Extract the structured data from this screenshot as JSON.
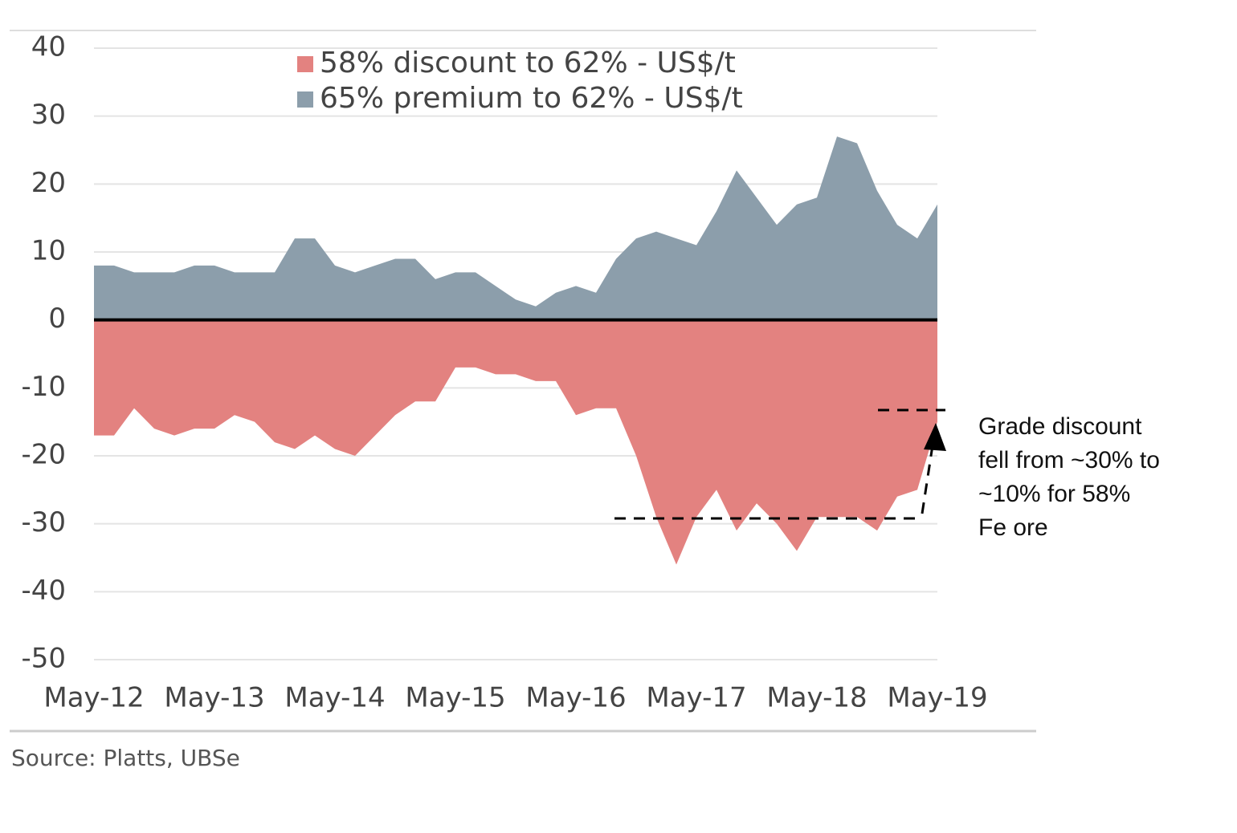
{
  "chart_data": {
    "type": "area",
    "source": "Source:  Platts, UBSe",
    "annotation": [
      "Grade discount",
      "fell from ~30% to",
      "~10% for 58%",
      "Fe ore"
    ],
    "x": [
      "2012-05",
      "2012-07",
      "2012-09",
      "2012-11",
      "2013-01",
      "2013-03",
      "2013-05",
      "2013-07",
      "2013-09",
      "2013-11",
      "2014-01",
      "2014-03",
      "2014-05",
      "2014-07",
      "2014-09",
      "2014-11",
      "2015-01",
      "2015-03",
      "2015-05",
      "2015-07",
      "2015-09",
      "2015-11",
      "2016-01",
      "2016-03",
      "2016-05",
      "2016-07",
      "2016-09",
      "2016-11",
      "2017-01",
      "2017-03",
      "2017-05",
      "2017-07",
      "2017-09",
      "2017-11",
      "2018-01",
      "2018-03",
      "2018-05",
      "2018-07",
      "2018-09",
      "2018-11",
      "2019-01",
      "2019-03",
      "2019-05"
    ],
    "series": [
      {
        "name": "58% discount to 62% - US$/t",
        "color": "#e38280",
        "values": [
          -17,
          -17,
          -13,
          -16,
          -17,
          -16,
          -16,
          -14,
          -15,
          -18,
          -19,
          -17,
          -19,
          -20,
          -17,
          -14,
          -12,
          -12,
          -7,
          -7,
          -8,
          -8,
          -9,
          -9,
          -14,
          -13,
          -13,
          -20,
          -29,
          -36,
          -29,
          -25,
          -31,
          -27,
          -30,
          -34,
          -29,
          -29,
          -29,
          -31,
          -26,
          -25,
          -15
        ]
      },
      {
        "name": "65% premium to 62% - US$/t",
        "color": "#8c9eab",
        "values": [
          8,
          8,
          7,
          7,
          7,
          8,
          8,
          7,
          7,
          7,
          12,
          12,
          8,
          7,
          8,
          9,
          9,
          6,
          7,
          7,
          5,
          3,
          2,
          4,
          5,
          4,
          9,
          12,
          13,
          12,
          11,
          16,
          22,
          18,
          14,
          17,
          18,
          27,
          26,
          19,
          14,
          12,
          17
        ]
      }
    ],
    "xticks": [
      {
        "value": "2012-05",
        "label": "May-12"
      },
      {
        "value": "2013-05",
        "label": "May-13"
      },
      {
        "value": "2014-05",
        "label": "May-14"
      },
      {
        "value": "2015-05",
        "label": "May-15"
      },
      {
        "value": "2016-05",
        "label": "May-16"
      },
      {
        "value": "2017-05",
        "label": "May-17"
      },
      {
        "value": "2018-05",
        "label": "May-18"
      },
      {
        "value": "2019-05",
        "label": "May-19"
      }
    ],
    "xlim": [
      "2012-05",
      "2019-05"
    ],
    "ylim": [
      -50,
      40
    ],
    "yticks": [
      -50,
      -40,
      -30,
      -20,
      -10,
      0,
      10,
      20,
      30,
      40
    ],
    "grid": true
  }
}
